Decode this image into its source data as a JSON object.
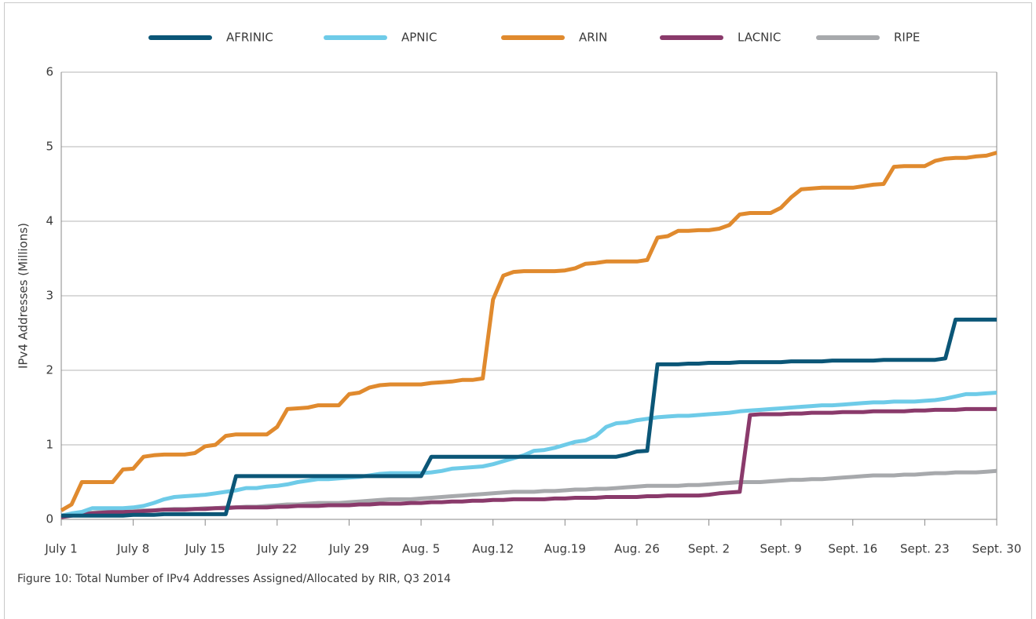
{
  "chart_data": {
    "type": "line",
    "caption": "Figure 10: Total Number of IPv4 Addresses Assigned/Allocated by RIR, Q3 2014",
    "ylabel": "IPv4 Addresses (Millions)",
    "categories": [
      "July 1",
      null,
      null,
      null,
      null,
      null,
      null,
      "July 8",
      null,
      null,
      null,
      null,
      null,
      null,
      "July 15",
      null,
      null,
      null,
      null,
      null,
      null,
      "July 22",
      null,
      null,
      null,
      null,
      null,
      null,
      "July 29",
      null,
      null,
      null,
      null,
      null,
      null,
      "Aug. 5",
      null,
      null,
      null,
      null,
      null,
      null,
      "Aug.12",
      null,
      null,
      null,
      null,
      null,
      null,
      "Aug.19",
      null,
      null,
      null,
      null,
      null,
      null,
      "Aug. 26",
      null,
      null,
      null,
      null,
      null,
      null,
      "Sept. 2",
      null,
      null,
      null,
      null,
      null,
      null,
      "Sept. 9",
      null,
      null,
      null,
      null,
      null,
      null,
      "Sept. 16",
      null,
      null,
      null,
      null,
      null,
      null,
      "Sept. 23",
      null,
      null,
      null,
      null,
      null,
      null,
      "Sept. 30"
    ],
    "ylim": [
      0,
      6
    ],
    "yticks": [
      0,
      1,
      2,
      3,
      4,
      5,
      6
    ],
    "grid": true,
    "legend": "top",
    "series": [
      {
        "name": "AFRINIC",
        "color": "#0b5677",
        "values": [
          0.05,
          0.05,
          0.05,
          0.05,
          0.05,
          0.05,
          0.05,
          0.06,
          0.06,
          0.06,
          0.07,
          0.07,
          0.07,
          0.07,
          0.07,
          0.07,
          0.07,
          0.58,
          0.58,
          0.58,
          0.58,
          0.58,
          0.58,
          0.58,
          0.58,
          0.58,
          0.58,
          0.58,
          0.58,
          0.58,
          0.58,
          0.58,
          0.58,
          0.58,
          0.58,
          0.58,
          0.84,
          0.84,
          0.84,
          0.84,
          0.84,
          0.84,
          0.84,
          0.84,
          0.84,
          0.84,
          0.84,
          0.84,
          0.84,
          0.84,
          0.84,
          0.84,
          0.84,
          0.84,
          0.84,
          0.87,
          0.91,
          0.92,
          2.08,
          2.08,
          2.08,
          2.09,
          2.09,
          2.1,
          2.1,
          2.1,
          2.11,
          2.11,
          2.11,
          2.11,
          2.11,
          2.12,
          2.12,
          2.12,
          2.12,
          2.13,
          2.13,
          2.13,
          2.13,
          2.13,
          2.14,
          2.14,
          2.14,
          2.14,
          2.14,
          2.14,
          2.16,
          2.68,
          2.68,
          2.68,
          2.68,
          2.68
        ]
      },
      {
        "name": "APNIC",
        "color": "#6ecbe8",
        "values": [
          0.05,
          0.08,
          0.1,
          0.15,
          0.15,
          0.15,
          0.15,
          0.16,
          0.18,
          0.22,
          0.27,
          0.3,
          0.31,
          0.32,
          0.33,
          0.35,
          0.37,
          0.39,
          0.42,
          0.42,
          0.44,
          0.45,
          0.47,
          0.5,
          0.52,
          0.54,
          0.54,
          0.55,
          0.56,
          0.57,
          0.59,
          0.61,
          0.62,
          0.62,
          0.62,
          0.62,
          0.63,
          0.65,
          0.68,
          0.69,
          0.7,
          0.71,
          0.74,
          0.78,
          0.82,
          0.86,
          0.92,
          0.93,
          0.96,
          1.0,
          1.04,
          1.06,
          1.12,
          1.24,
          1.29,
          1.3,
          1.33,
          1.35,
          1.37,
          1.38,
          1.39,
          1.39,
          1.4,
          1.41,
          1.42,
          1.43,
          1.45,
          1.46,
          1.47,
          1.48,
          1.49,
          1.5,
          1.51,
          1.52,
          1.53,
          1.53,
          1.54,
          1.55,
          1.56,
          1.57,
          1.57,
          1.58,
          1.58,
          1.58,
          1.59,
          1.6,
          1.62,
          1.65,
          1.68,
          1.68,
          1.69,
          1.7
        ]
      },
      {
        "name": "ARIN",
        "color": "#e08a2e",
        "values": [
          0.12,
          0.2,
          0.5,
          0.5,
          0.5,
          0.5,
          0.67,
          0.68,
          0.84,
          0.86,
          0.87,
          0.87,
          0.87,
          0.89,
          0.98,
          1.0,
          1.12,
          1.14,
          1.14,
          1.14,
          1.14,
          1.24,
          1.48,
          1.49,
          1.5,
          1.53,
          1.53,
          1.53,
          1.68,
          1.7,
          1.77,
          1.8,
          1.81,
          1.81,
          1.81,
          1.81,
          1.83,
          1.84,
          1.85,
          1.87,
          1.87,
          1.89,
          2.95,
          3.27,
          3.32,
          3.33,
          3.33,
          3.33,
          3.33,
          3.34,
          3.37,
          3.43,
          3.44,
          3.46,
          3.46,
          3.46,
          3.46,
          3.48,
          3.78,
          3.8,
          3.87,
          3.87,
          3.88,
          3.88,
          3.9,
          3.95,
          4.09,
          4.11,
          4.11,
          4.11,
          4.18,
          4.32,
          4.43,
          4.44,
          4.45,
          4.45,
          4.45,
          4.45,
          4.47,
          4.49,
          4.5,
          4.73,
          4.74,
          4.74,
          4.74,
          4.81,
          4.84,
          4.85,
          4.85,
          4.87,
          4.88,
          4.92
        ]
      },
      {
        "name": "LACNIC",
        "color": "#8a3a6b",
        "values": [
          0.03,
          0.05,
          0.07,
          0.08,
          0.09,
          0.1,
          0.1,
          0.1,
          0.11,
          0.12,
          0.13,
          0.13,
          0.13,
          0.14,
          0.14,
          0.15,
          0.15,
          0.16,
          0.16,
          0.16,
          0.16,
          0.17,
          0.17,
          0.18,
          0.18,
          0.18,
          0.19,
          0.19,
          0.19,
          0.2,
          0.2,
          0.21,
          0.21,
          0.21,
          0.22,
          0.22,
          0.23,
          0.23,
          0.24,
          0.24,
          0.25,
          0.25,
          0.26,
          0.26,
          0.27,
          0.27,
          0.27,
          0.27,
          0.28,
          0.28,
          0.29,
          0.29,
          0.29,
          0.3,
          0.3,
          0.3,
          0.3,
          0.31,
          0.31,
          0.32,
          0.32,
          0.32,
          0.32,
          0.33,
          0.35,
          0.36,
          0.37,
          1.4,
          1.41,
          1.41,
          1.41,
          1.42,
          1.42,
          1.43,
          1.43,
          1.43,
          1.44,
          1.44,
          1.44,
          1.45,
          1.45,
          1.45,
          1.45,
          1.46,
          1.46,
          1.47,
          1.47,
          1.47,
          1.48,
          1.48,
          1.48,
          1.48
        ]
      },
      {
        "name": "RIPE",
        "color": "#a7a9ac",
        "values": [
          0.05,
          0.07,
          0.08,
          0.09,
          0.1,
          0.1,
          0.1,
          0.11,
          0.12,
          0.12,
          0.13,
          0.14,
          0.14,
          0.14,
          0.15,
          0.15,
          0.16,
          0.16,
          0.17,
          0.17,
          0.18,
          0.19,
          0.2,
          0.2,
          0.21,
          0.22,
          0.22,
          0.22,
          0.23,
          0.24,
          0.25,
          0.26,
          0.27,
          0.27,
          0.27,
          0.28,
          0.29,
          0.3,
          0.31,
          0.32,
          0.33,
          0.34,
          0.35,
          0.36,
          0.37,
          0.37,
          0.37,
          0.38,
          0.38,
          0.39,
          0.4,
          0.4,
          0.41,
          0.41,
          0.42,
          0.43,
          0.44,
          0.45,
          0.45,
          0.45,
          0.45,
          0.46,
          0.46,
          0.47,
          0.48,
          0.49,
          0.5,
          0.5,
          0.5,
          0.51,
          0.52,
          0.53,
          0.53,
          0.54,
          0.54,
          0.55,
          0.56,
          0.57,
          0.58,
          0.59,
          0.59,
          0.59,
          0.6,
          0.6,
          0.61,
          0.62,
          0.62,
          0.63,
          0.63,
          0.63,
          0.64,
          0.65
        ]
      }
    ]
  }
}
